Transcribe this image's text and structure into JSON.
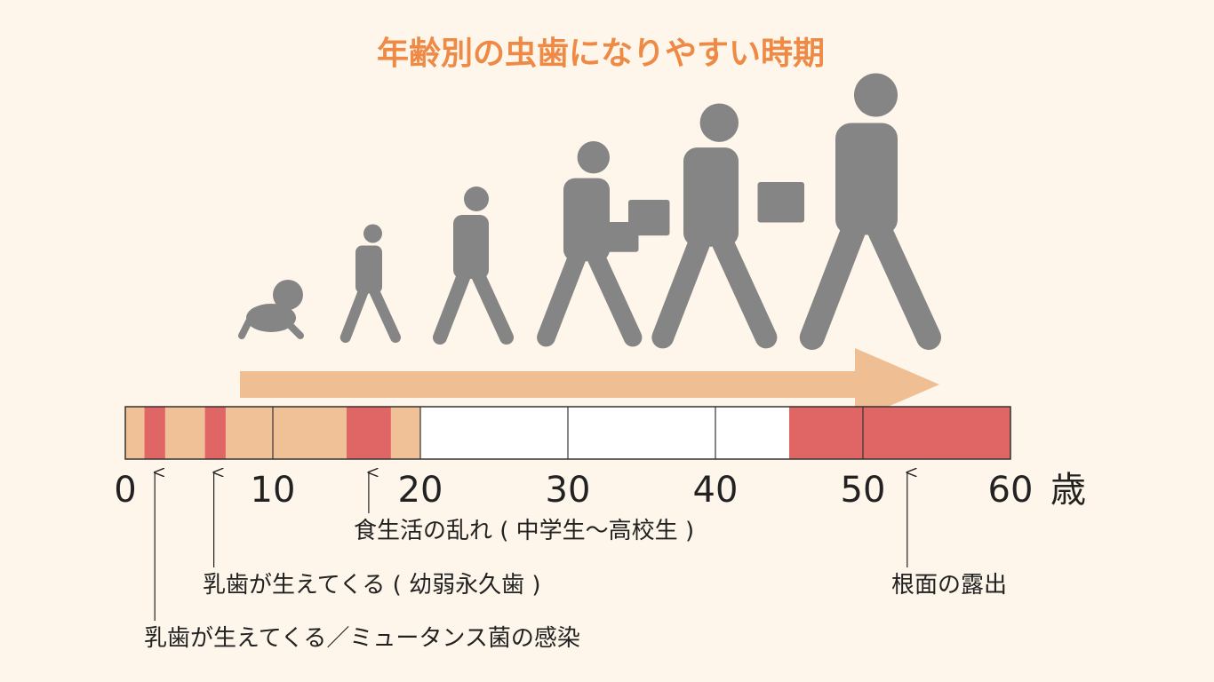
{
  "title": "年齢別の虫歯になりやすい時期",
  "axis": {
    "lim": [
      0,
      60
    ],
    "ticks": [
      0,
      10,
      20,
      30,
      40,
      50,
      60
    ],
    "unit": "歳"
  },
  "bands": [
    {
      "start": 0,
      "end": 20,
      "color": "#f0c096"
    },
    {
      "start": 1.3,
      "end": 2.7,
      "color": "#e06666"
    },
    {
      "start": 5.4,
      "end": 6.8,
      "color": "#e06666"
    },
    {
      "start": 15,
      "end": 18,
      "color": "#e06666"
    },
    {
      "start": 45,
      "end": 60,
      "color": "#e06666"
    }
  ],
  "annotations": [
    {
      "age": 2,
      "label": "乳歯が生えてくる／ミュータンス菌の感染"
    },
    {
      "age": 6,
      "label": "乳歯が生えてくる ( 幼弱永久歯 )"
    },
    {
      "age": 16.5,
      "label": "食生活の乱れ ( 中学生～高校生 )"
    },
    {
      "age": 53,
      "label": "根面の露出"
    }
  ]
}
